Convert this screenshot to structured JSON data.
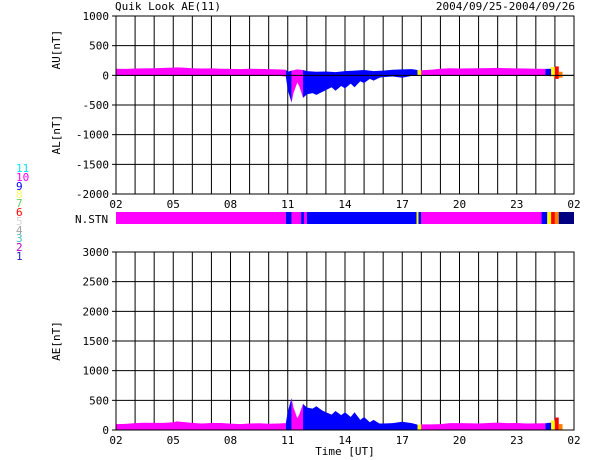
{
  "header": {
    "title": "Quik Look AE(11)",
    "date_range": "2004/09/25-2004/09/26"
  },
  "legend": {
    "items": [
      {
        "label": "11",
        "color": "#00e5ff"
      },
      {
        "label": "10",
        "color": "#ff00ff"
      },
      {
        "label": "9",
        "color": "#0000ff"
      },
      {
        "label": "8",
        "color": "#ffff66"
      },
      {
        "label": "7",
        "color": "#66cc66"
      },
      {
        "label": "6",
        "color": "#ff0000"
      },
      {
        "label": "5",
        "color": "#d8d8d8"
      },
      {
        "label": "4",
        "color": "#a0a0a0"
      },
      {
        "label": "3",
        "color": "#40c0c0"
      },
      {
        "label": "2",
        "color": "#c000c0"
      },
      {
        "label": "1",
        "color": "#2020c0"
      }
    ]
  },
  "colors": {
    "magenta": "#ff00ff",
    "blue": "#0000ff",
    "navy": "#000080",
    "yellow": "#ffff00",
    "red": "#ff0000",
    "orange": "#ff8000",
    "grid": "#000000"
  },
  "chart_data": [
    {
      "type": "area",
      "id": "au_al",
      "ylabel_top": "AU[nT]",
      "ylabel_bottom": "AL[nT]",
      "ylim": [
        -2000,
        1000
      ],
      "yticks": [
        1000,
        500,
        0,
        -500,
        -1000,
        -1500,
        -2000
      ],
      "xlim": [
        0,
        24
      ],
      "xticks": [
        0,
        3,
        6,
        9,
        12,
        15,
        18,
        21,
        24
      ],
      "xticklabels": [
        "02",
        "05",
        "08",
        "11",
        "14",
        "17",
        "20",
        "23",
        "02"
      ],
      "grid": true,
      "series": [
        {
          "role": "AU",
          "x": [
            0,
            0.5,
            1,
            1.5,
            2,
            2.5,
            3,
            3.2,
            3.5,
            4,
            4.5,
            5,
            5.5,
            6,
            6.5,
            7,
            7.5,
            8,
            8.5,
            8.9,
            9,
            9.2,
            9.5,
            9.8,
            10,
            10.5,
            11,
            11.5,
            12,
            12.5,
            13,
            13.5,
            14,
            14.5,
            15,
            15.5,
            15.8,
            16,
            16.5,
            17,
            17.5,
            18,
            18.5,
            19,
            19.5,
            20,
            20.5,
            21,
            21.5,
            22,
            22.5,
            22.9,
            23,
            23.2
          ],
          "y": [
            110,
            108,
            115,
            118,
            120,
            125,
            130,
            135,
            130,
            120,
            115,
            118,
            112,
            108,
            105,
            110,
            108,
            105,
            100,
            95,
            60,
            80,
            100,
            90,
            70,
            60,
            65,
            55,
            70,
            80,
            90,
            70,
            80,
            95,
            100,
            105,
            90,
            85,
            95,
            110,
            120,
            115,
            118,
            120,
            122,
            125,
            120,
            118,
            115,
            112,
            108,
            105,
            100,
            95
          ]
        },
        {
          "role": "AL",
          "x": [
            0,
            0.5,
            1,
            1.5,
            2,
            2.5,
            3,
            3.2,
            3.5,
            4,
            4.5,
            5,
            5.5,
            6,
            6.5,
            7,
            7.5,
            8,
            8.5,
            8.9,
            9,
            9.2,
            9.3,
            9.5,
            9.6,
            9.8,
            10,
            10.3,
            10.5,
            10.8,
            11,
            11.3,
            11.5,
            11.8,
            12,
            12.3,
            12.5,
            12.8,
            13,
            13.3,
            13.5,
            13.8,
            14,
            14.5,
            15,
            15.5,
            15.8,
            16,
            16.5,
            17,
            17.5,
            18,
            18.5,
            19,
            19.5,
            20,
            20.5,
            21,
            21.5,
            22,
            22.5,
            22.9,
            23,
            23.2
          ],
          "y": [
            10,
            5,
            0,
            -5,
            0,
            5,
            0,
            -10,
            -5,
            0,
            5,
            0,
            -5,
            0,
            5,
            0,
            -5,
            0,
            -10,
            -20,
            -250,
            -460,
            -300,
            -120,
            -180,
            -380,
            -320,
            -300,
            -330,
            -280,
            -250,
            -200,
            -260,
            -180,
            -220,
            -140,
            -200,
            -100,
            -130,
            -60,
            -90,
            -40,
            -30,
            -20,
            -40,
            -10,
            0,
            -10,
            0,
            10,
            5,
            0,
            5,
            10,
            5,
            0,
            5,
            0,
            5,
            0,
            -5,
            -20,
            -30,
            -10
          ]
        }
      ],
      "tail_bars": [
        {
          "x": [
            22.6,
            22.8
          ],
          "color": "#0000ff",
          "au": 110,
          "al": -10
        },
        {
          "x": [
            22.8,
            23.0
          ],
          "color": "#ffff00",
          "au": 140,
          "al": -20
        },
        {
          "x": [
            23.0,
            23.2
          ],
          "color": "#ff0000",
          "au": 150,
          "al": -60
        },
        {
          "x": [
            23.2,
            23.4
          ],
          "color": "#ff8000",
          "au": 60,
          "al": -40
        }
      ]
    },
    {
      "type": "band",
      "id": "nstn",
      "ylabel": "N.STN",
      "segments": [
        {
          "x": [
            0,
            8.9
          ],
          "color": "#ff00ff"
        },
        {
          "x": [
            8.9,
            9.2
          ],
          "color": "#0000ff"
        },
        {
          "x": [
            9.2,
            9.7
          ],
          "color": "#ff00ff"
        },
        {
          "x": [
            9.7,
            9.85
          ],
          "color": "#0000ff"
        },
        {
          "x": [
            9.85,
            10.0
          ],
          "color": "#ff00ff"
        },
        {
          "x": [
            10.0,
            15.75
          ],
          "color": "#0000ff"
        },
        {
          "x": [
            15.75,
            15.85
          ],
          "color": "#ffff00"
        },
        {
          "x": [
            15.85,
            16.0
          ],
          "color": "#0000ff"
        },
        {
          "x": [
            16.0,
            22.3
          ],
          "color": "#ff00ff"
        },
        {
          "x": [
            22.3,
            22.6
          ],
          "color": "#0000ff"
        },
        {
          "x": [
            22.6,
            22.8
          ],
          "color": "#ffff00"
        },
        {
          "x": [
            22.8,
            23.0
          ],
          "color": "#ff0000"
        },
        {
          "x": [
            23.0,
            23.2
          ],
          "color": "#ff8000"
        },
        {
          "x": [
            23.2,
            24.0
          ],
          "color": "#000080"
        }
      ]
    },
    {
      "type": "area",
      "id": "ae",
      "ylabel": "AE[nT]",
      "xlabel": "Time [UT]",
      "ylim": [
        0,
        3000
      ],
      "yticks": [
        3000,
        2500,
        2000,
        1500,
        1000,
        500,
        0
      ],
      "xlim": [
        0,
        24
      ],
      "xticks": [
        0,
        3,
        6,
        9,
        12,
        15,
        18,
        21,
        24
      ],
      "xticklabels": [
        "02",
        "05",
        "08",
        "11",
        "14",
        "17",
        "20",
        "23",
        "02"
      ],
      "grid": true,
      "series": [
        {
          "role": "AE",
          "x": [
            0,
            0.5,
            1,
            1.5,
            2,
            2.5,
            3,
            3.2,
            3.5,
            4,
            4.5,
            5,
            5.5,
            6,
            6.5,
            7,
            7.5,
            8,
            8.5,
            8.9,
            9,
            9.2,
            9.3,
            9.5,
            9.6,
            9.8,
            10,
            10.3,
            10.5,
            10.8,
            11,
            11.3,
            11.5,
            11.8,
            12,
            12.3,
            12.5,
            12.8,
            13,
            13.3,
            13.5,
            13.8,
            14,
            14.5,
            15,
            15.5,
            15.8,
            16,
            16.5,
            17,
            17.5,
            18,
            18.5,
            19,
            19.5,
            20,
            20.5,
            21,
            21.5,
            22,
            22.5,
            22.9,
            23,
            23.2
          ],
          "y": [
            100,
            103,
            115,
            123,
            120,
            120,
            130,
            145,
            135,
            120,
            110,
            118,
            117,
            108,
            100,
            110,
            113,
            105,
            110,
            115,
            310,
            540,
            380,
            200,
            260,
            440,
            380,
            360,
            400,
            330,
            300,
            260,
            320,
            250,
            300,
            220,
            300,
            170,
            220,
            130,
            170,
            110,
            110,
            115,
            140,
            115,
            90,
            95,
            95,
            100,
            115,
            115,
            113,
            110,
            117,
            125,
            115,
            118,
            110,
            112,
            113,
            125,
            130,
            105
          ]
        }
      ],
      "tail_bars": [
        {
          "x": [
            22.6,
            22.8
          ],
          "color": "#0000ff",
          "value": 120
        },
        {
          "x": [
            22.8,
            23.0
          ],
          "color": "#ffff00",
          "value": 160
        },
        {
          "x": [
            23.0,
            23.2
          ],
          "color": "#ff0000",
          "value": 210
        },
        {
          "x": [
            23.2,
            23.4
          ],
          "color": "#ff8000",
          "value": 100
        }
      ]
    }
  ]
}
